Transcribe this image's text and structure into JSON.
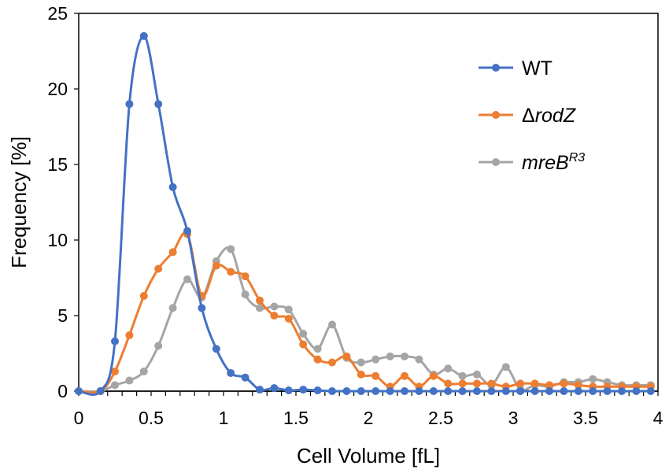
{
  "chart_data": {
    "type": "line",
    "xlabel": "Cell Volume [fL]",
    "ylabel": "Frequency [%]",
    "xlim": [
      0,
      4
    ],
    "ylim": [
      0,
      25
    ],
    "x_ticks": [
      "0",
      "0.5",
      "1",
      "1.5",
      "2",
      "2.5",
      "3",
      "3.5",
      "4"
    ],
    "y_ticks": [
      "0",
      "5",
      "10",
      "15",
      "20",
      "25"
    ],
    "x_tick_values": [
      0,
      0.5,
      1,
      1.5,
      2,
      2.5,
      3,
      3.5,
      4
    ],
    "y_tick_values": [
      0,
      5,
      10,
      15,
      20,
      25
    ],
    "grid": false,
    "legend_position": "top-right",
    "x": [
      0,
      0.15,
      0.25,
      0.35,
      0.45,
      0.55,
      0.65,
      0.75,
      0.85,
      0.95,
      1.05,
      1.15,
      1.25,
      1.35,
      1.45,
      1.55,
      1.65,
      1.75,
      1.85,
      1.95,
      2.05,
      2.15,
      2.25,
      2.35,
      2.45,
      2.55,
      2.65,
      2.75,
      2.85,
      2.95,
      3.05,
      3.15,
      3.25,
      3.35,
      3.45,
      3.55,
      3.65,
      3.75,
      3.85,
      3.95
    ],
    "series": [
      {
        "name": "WT",
        "legend_main": "WT",
        "legend_sup": "",
        "italic": false,
        "color": "#4472c4",
        "values": [
          0,
          0,
          3.3,
          19.0,
          23.5,
          19.0,
          13.5,
          10.6,
          5.5,
          2.8,
          1.2,
          0.9,
          0.1,
          0.2,
          0.05,
          0.1,
          0.05,
          0,
          0,
          0,
          0,
          0,
          0,
          0,
          0,
          0,
          0,
          0,
          0,
          0,
          0,
          0,
          0,
          0,
          0,
          0,
          0,
          0,
          0,
          0
        ]
      },
      {
        "name": "ΔrodZ",
        "legend_main": "ΔrodZ",
        "legend_sup": "",
        "italic": true,
        "color": "#ed7d31",
        "values": [
          0,
          0,
          1.3,
          3.7,
          6.3,
          8.1,
          9.2,
          10.4,
          6.3,
          8.3,
          7.9,
          7.6,
          6.0,
          5.0,
          4.8,
          3.1,
          2.1,
          1.9,
          2.3,
          1.1,
          1.0,
          0.3,
          1.0,
          0.3,
          1.0,
          0.5,
          0.5,
          0.5,
          0.5,
          0.3,
          0.5,
          0.5,
          0.4,
          0.5,
          0.4,
          0.3,
          0.3,
          0.3,
          0.3,
          0.3
        ]
      },
      {
        "name": "mreBR3",
        "legend_main": "mreB",
        "legend_sup": "R3",
        "italic": true,
        "color": "#a5a5a5",
        "values": [
          0,
          0,
          0.4,
          0.7,
          1.3,
          3.0,
          5.5,
          7.4,
          6.2,
          8.6,
          9.4,
          6.4,
          5.5,
          5.6,
          5.4,
          3.8,
          2.8,
          4.4,
          2.2,
          1.9,
          2.1,
          2.3,
          2.3,
          2.1,
          1.1,
          1.5,
          1.0,
          1.1,
          0.4,
          1.6,
          0.1,
          0.4,
          0.3,
          0.6,
          0.6,
          0.8,
          0.6,
          0.4,
          0.4,
          0.4
        ]
      }
    ]
  }
}
